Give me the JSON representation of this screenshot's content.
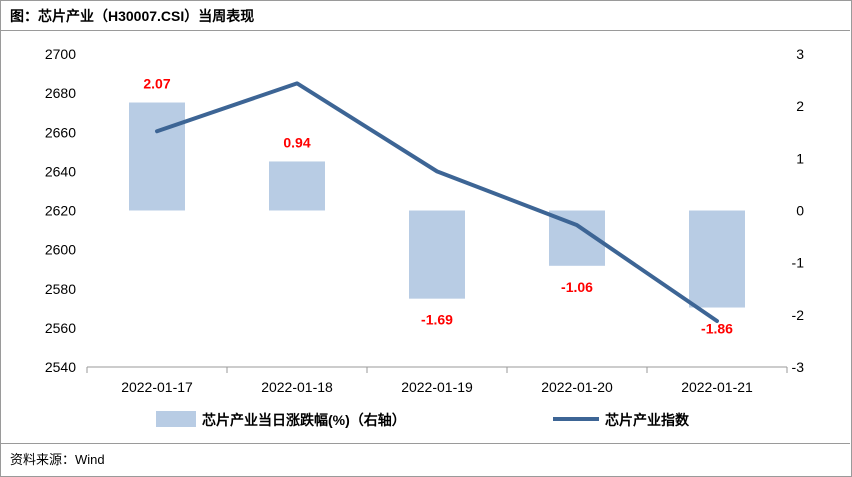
{
  "figure": {
    "title": "图：芯片产业（H30007.CSI）当周表现",
    "source": "资料来源：Wind"
  },
  "chart_data": {
    "type": "bar",
    "title": "图：芯片产业（H30007.CSI）当周表现",
    "categories": [
      "2022-01-17",
      "2022-01-18",
      "2022-01-19",
      "2022-01-20",
      "2022-01-21"
    ],
    "series": [
      {
        "name": "芯片产业当日涨跌幅(%)（右轴）",
        "type": "bar",
        "axis": "right",
        "color": "#b8cce4",
        "values": [
          2.07,
          0.94,
          -1.69,
          -1.06,
          -1.86
        ],
        "labels": [
          "2.07",
          "0.94",
          "-1.69",
          "-1.06",
          "-1.86"
        ]
      },
      {
        "name": "芯片产业指数",
        "type": "line",
        "axis": "left",
        "color": "#3d6595",
        "values": [
          2660.5,
          2685,
          2640,
          2612.5,
          2563.5
        ]
      }
    ],
    "y_left": {
      "min": 2540,
      "max": 2700,
      "ticks": [
        "2700",
        "2680",
        "2660",
        "2640",
        "2620",
        "2600",
        "2580",
        "2560",
        "2540"
      ]
    },
    "y_right": {
      "min": -3,
      "max": 3,
      "ticks": [
        "3",
        "2",
        "1",
        "0",
        "-1",
        "-2",
        "-3"
      ]
    },
    "legend_position": "bottom"
  }
}
